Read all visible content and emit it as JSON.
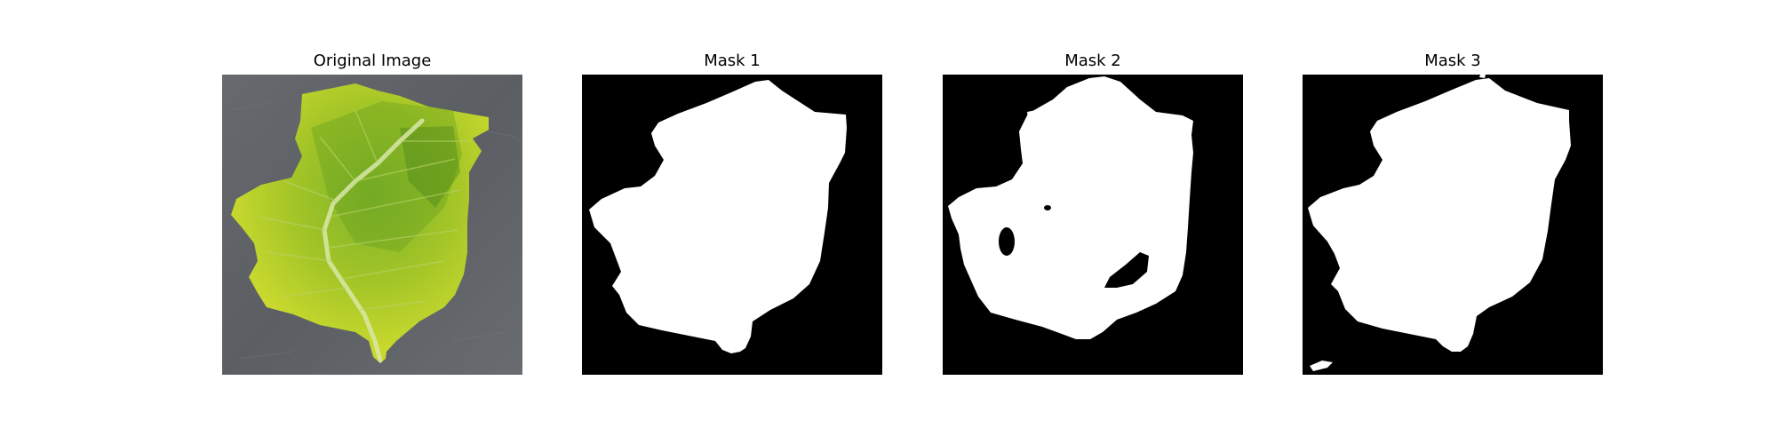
{
  "panels": [
    {
      "title": "Original Image",
      "kind": "photo"
    },
    {
      "title": "Mask 1",
      "kind": "mask"
    },
    {
      "title": "Mask 2",
      "kind": "mask"
    },
    {
      "title": "Mask 3",
      "kind": "mask"
    }
  ],
  "colors": {
    "background": "#ffffff",
    "mask_foreground": "#ffffff",
    "mask_background": "#000000",
    "ground": "#5f6266",
    "leaf_light": "#c7d62a",
    "leaf_dark": "#5f9a1e",
    "vein": "#d8e7a8"
  }
}
